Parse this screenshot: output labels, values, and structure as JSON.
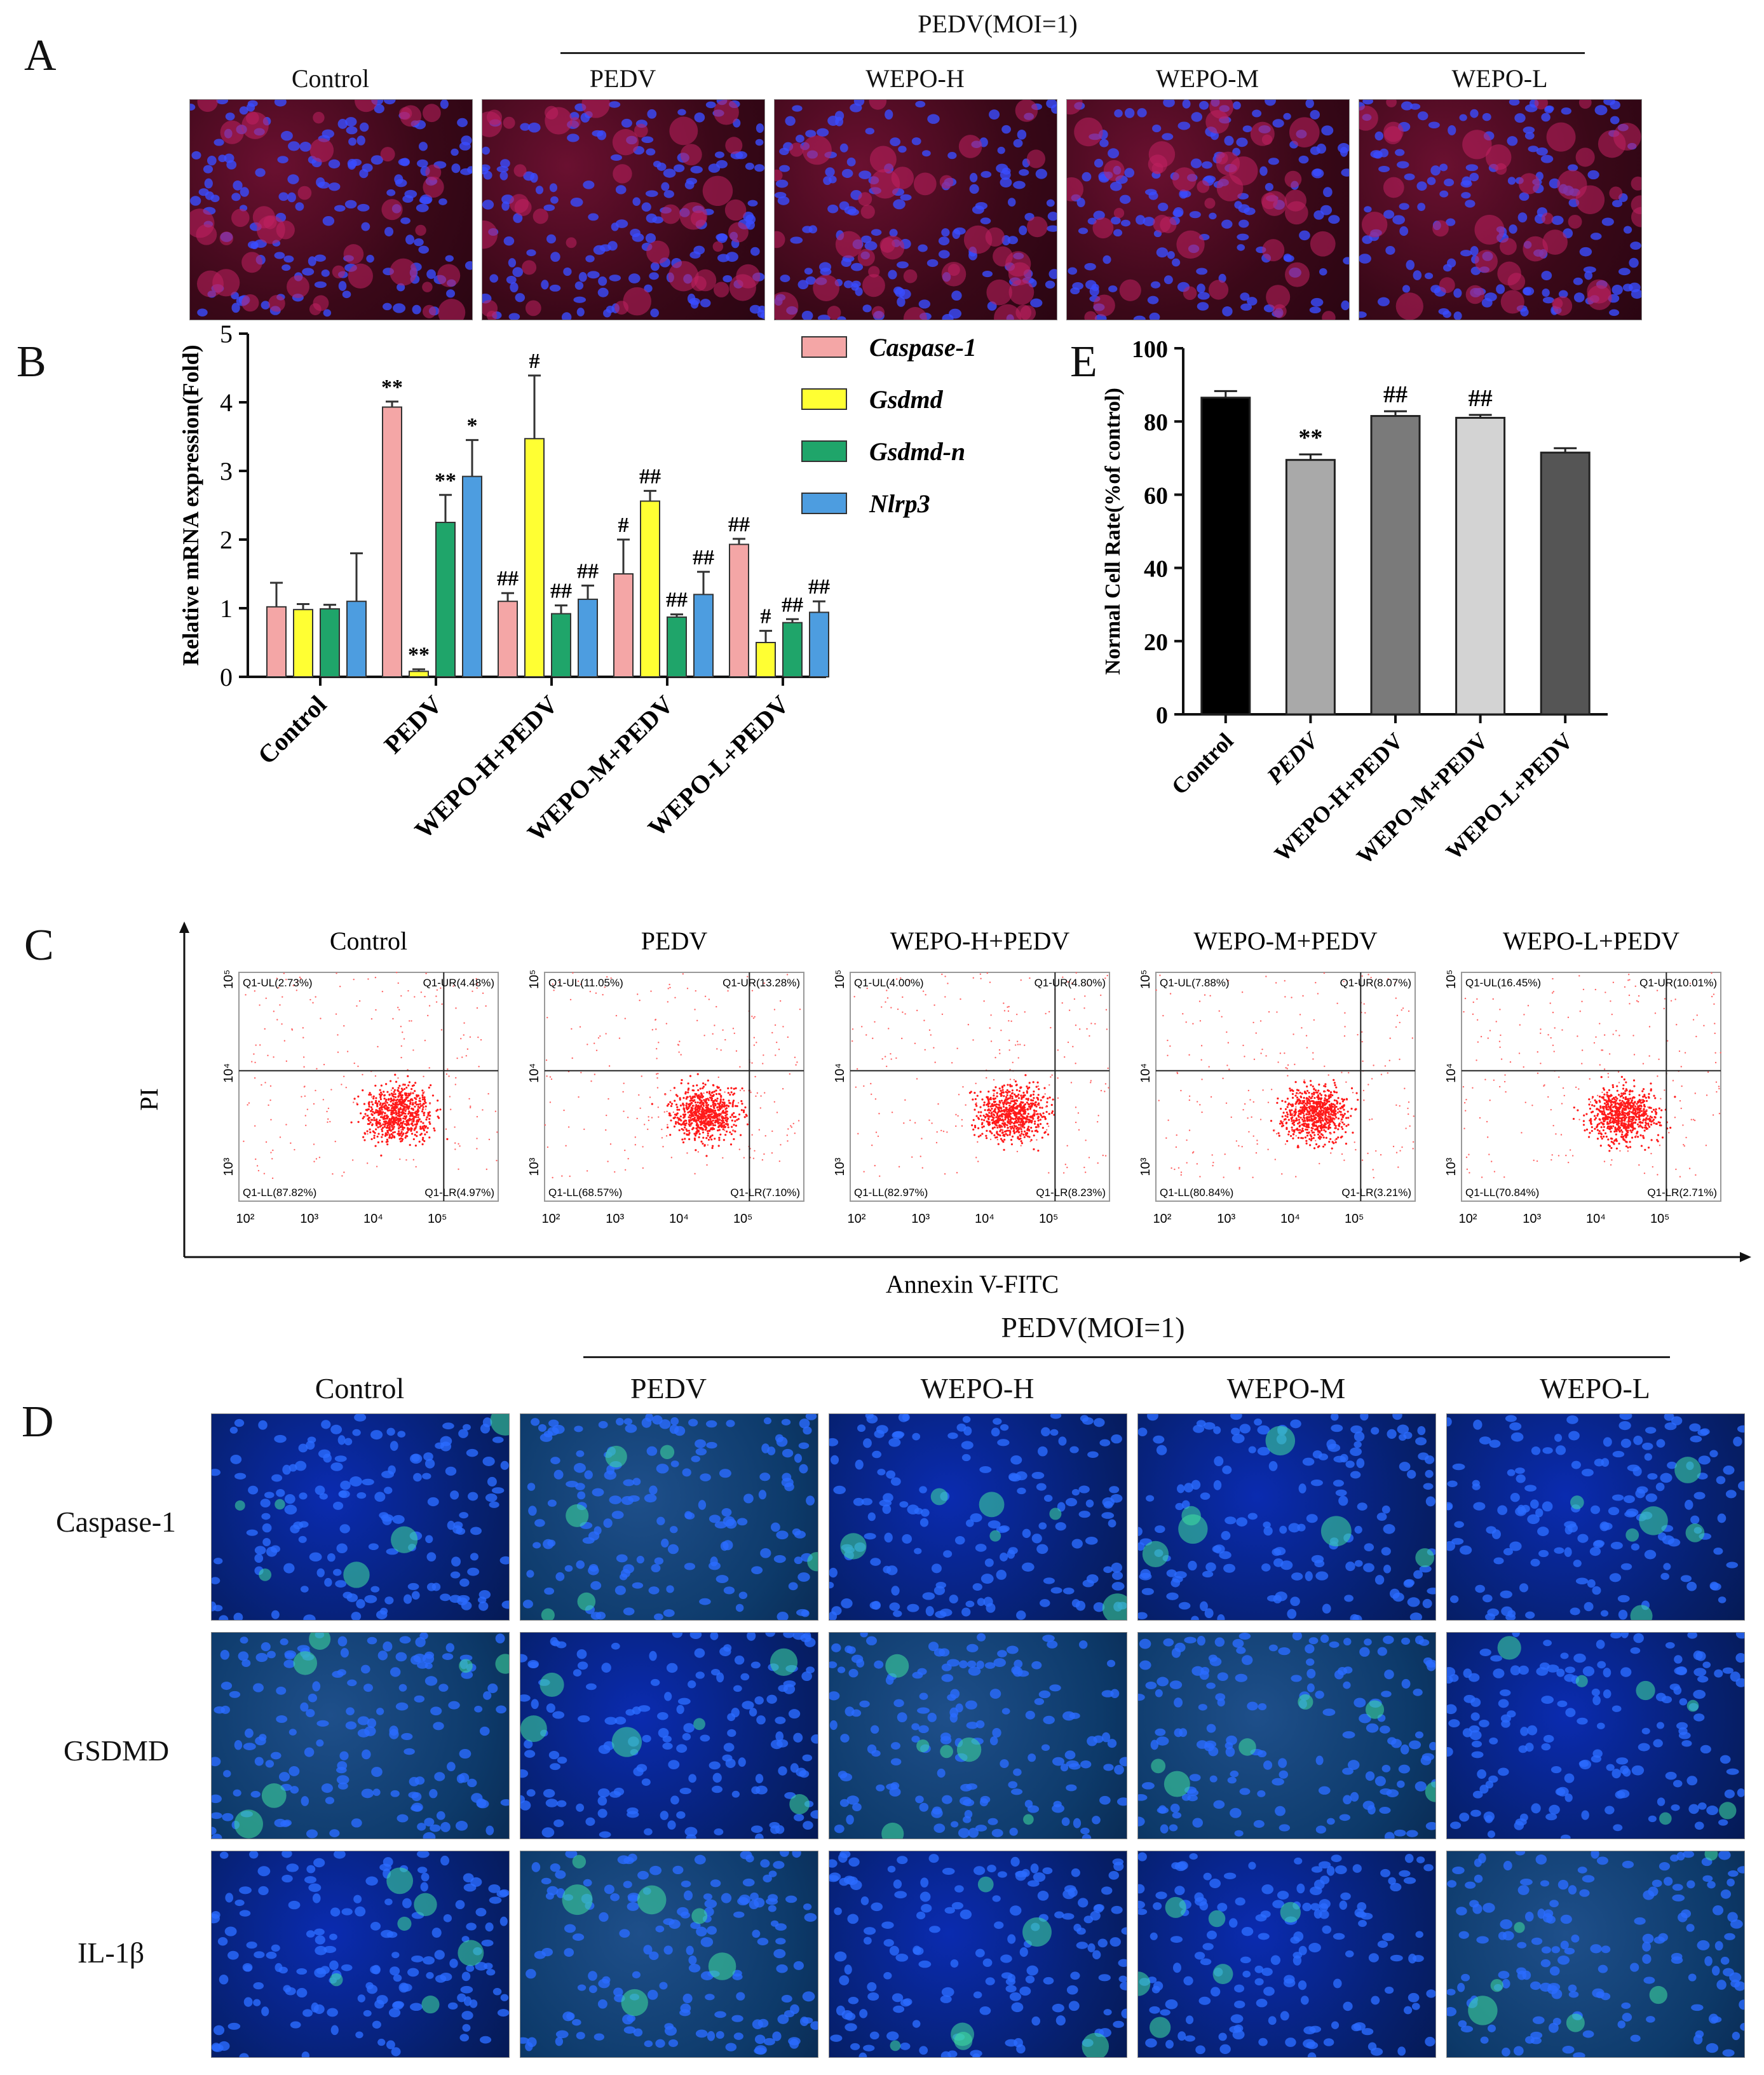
{
  "panelA": {
    "letter": "A",
    "group_label": "PEDV(MOI=1)",
    "columns": [
      "Control",
      "PEDV",
      "WEPO-H",
      "WEPO-M",
      "WEPO-L"
    ]
  },
  "panelB": {
    "letter": "B",
    "chart_data": {
      "type": "bar",
      "ylabel": "Relative mRNA expression(Fold)",
      "ylim": [
        0,
        5
      ],
      "yticks": [
        "0",
        "1",
        "2",
        "3",
        "4",
        "5"
      ],
      "categories": [
        "Control",
        "PEDV",
        "WEPO-H+PEDV",
        "WEPO-M+PEDV",
        "WEPO-L+PEDV"
      ],
      "series": [
        {
          "name": "Caspase-1",
          "color": "#f4a6a6",
          "values": [
            1.02,
            3.93,
            1.1,
            1.5,
            1.93
          ],
          "errors": [
            0.35,
            0.08,
            0.12,
            0.5,
            0.08
          ],
          "marks": [
            "",
            "**",
            "##",
            "#",
            "##"
          ]
        },
        {
          "name": "Gsdmd",
          "color": "#ffff33",
          "values": [
            0.98,
            0.08,
            3.47,
            2.56,
            0.5
          ],
          "errors": [
            0.08,
            0.03,
            0.92,
            0.15,
            0.17
          ],
          "marks": [
            "",
            "**",
            "#",
            "##",
            "#"
          ]
        },
        {
          "name": "Gsdmd-n",
          "color": "#1fa56a",
          "values": [
            0.99,
            2.25,
            0.92,
            0.87,
            0.79
          ],
          "errors": [
            0.06,
            0.4,
            0.12,
            0.04,
            0.05
          ],
          "marks": [
            "",
            "**",
            "##",
            "##",
            "##"
          ]
        },
        {
          "name": "Nlrp3",
          "color": "#4d9de0",
          "values": [
            1.1,
            2.92,
            1.13,
            1.2,
            0.94
          ],
          "errors": [
            0.7,
            0.53,
            0.2,
            0.33,
            0.16
          ],
          "marks": [
            "",
            "*",
            "##",
            "##",
            "##"
          ]
        }
      ]
    }
  },
  "panelE": {
    "letter": "E",
    "chart_data": {
      "type": "bar",
      "ylabel": "Normal Cell Rate(%of control)",
      "ylim": [
        0,
        100
      ],
      "yticks": [
        "0",
        "20",
        "40",
        "60",
        "80",
        "100"
      ],
      "categories": [
        "Control",
        "PEDV",
        "WEPO-H+PEDV",
        "WEPO-M+PEDV",
        "WEPO-L+PEDV"
      ],
      "values": [
        86.5,
        69.5,
        81.5,
        81.0,
        71.5
      ],
      "errors": [
        1.8,
        1.5,
        1.3,
        0.8,
        1.2
      ],
      "colors": [
        "#000000",
        "#a9a9a9",
        "#7a7a7a",
        "#d3d3d3",
        "#555555"
      ],
      "marks": [
        "",
        "**",
        "##",
        "##",
        ""
      ]
    }
  },
  "panelC": {
    "letter": "C",
    "ylabel": "PI",
    "xlabel": "Annexin V-FITC",
    "x_ticks": [
      "10²",
      "10³",
      "10⁴",
      "10⁵"
    ],
    "y_ticks": [
      "10³",
      "10⁴",
      "10⁵"
    ],
    "plots": [
      {
        "title": "Control",
        "UL": "Q1-UL(2.73%)",
        "UR": "Q1-UR(4.48%)",
        "LL": "Q1-LL(87.82%)",
        "LR": "Q1-LR(4.97%)"
      },
      {
        "title": "PEDV",
        "UL": "Q1-UL(11.05%)",
        "UR": "Q1-UR(13.28%)",
        "LL": "Q1-LL(68.57%)",
        "LR": "Q1-LR(7.10%)"
      },
      {
        "title": "WEPO-H+PEDV",
        "UL": "Q1-UL(4.00%)",
        "UR": "Q1-UR(4.80%)",
        "LL": "Q1-LL(82.97%)",
        "LR": "Q1-LR(8.23%)"
      },
      {
        "title": "WEPO-M+PEDV",
        "UL": "Q1-UL(7.88%)",
        "UR": "Q1-UR(8.07%)",
        "LL": "Q1-LL(80.84%)",
        "LR": "Q1-LR(3.21%)"
      },
      {
        "title": "WEPO-L+PEDV",
        "UL": "Q1-UL(16.45%)",
        "UR": "Q1-UR(10.01%)",
        "LL": "Q1-LL(70.84%)",
        "LR": "Q1-LR(2.71%)"
      }
    ]
  },
  "panelD": {
    "letter": "D",
    "group_label": "PEDV(MOI=1)",
    "columns": [
      "Control",
      "PEDV",
      "WEPO-H",
      "WEPO-M",
      "WEPO-L"
    ],
    "rows": [
      "Caspase-1",
      "GSDMD",
      "IL-1β"
    ]
  }
}
